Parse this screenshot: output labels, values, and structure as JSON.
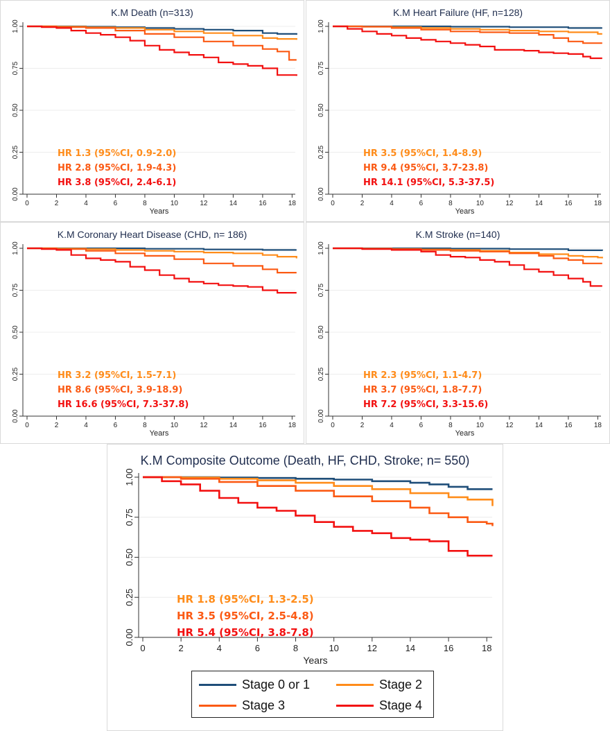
{
  "figure": {
    "colors": {
      "stage01": "#1f4e79",
      "stage2": "#ff8c1a",
      "stage3": "#fb5a14",
      "stage4": "#f21010",
      "title": "#1f2d4e"
    },
    "legend": [
      {
        "label": "Stage 0 or 1",
        "color": "#1f4e79"
      },
      {
        "label": "Stage 2",
        "color": "#ff8c1a"
      },
      {
        "label": "Stage 3",
        "color": "#fb5a14"
      },
      {
        "label": "Stage 4",
        "color": "#f21010"
      }
    ]
  },
  "chart_data": [
    {
      "type": "line",
      "title": "K.M Death (n=313)",
      "xlabel": "Years",
      "xlim": [
        0,
        18.5
      ],
      "ylim": [
        0,
        1
      ],
      "xticks": [
        "0",
        "2",
        "4",
        "6",
        "8",
        "10",
        "12",
        "14",
        "16",
        "18"
      ],
      "yticks": [
        "0.00",
        "0.25",
        "0.50",
        "0.75",
        "1.00"
      ],
      "series": [
        {
          "name": "Stage 0 or 1",
          "x": [
            0,
            2,
            4,
            6,
            8,
            10,
            12,
            14,
            16,
            17,
            18.3
          ],
          "y": [
            1.0,
            1.0,
            0.998,
            0.995,
            0.99,
            0.985,
            0.98,
            0.975,
            0.96,
            0.955,
            0.95
          ]
        },
        {
          "name": "Stage 2",
          "x": [
            0,
            2,
            4,
            6,
            8,
            10,
            12,
            14,
            16,
            17,
            18.3
          ],
          "y": [
            1.0,
            0.998,
            0.994,
            0.99,
            0.98,
            0.97,
            0.96,
            0.945,
            0.93,
            0.925,
            0.92
          ]
        },
        {
          "name": "Stage 3",
          "x": [
            0,
            2,
            4,
            6,
            8,
            10,
            12,
            14,
            16,
            17,
            17.8,
            18.3
          ],
          "y": [
            1.0,
            0.995,
            0.99,
            0.975,
            0.955,
            0.935,
            0.91,
            0.885,
            0.865,
            0.85,
            0.8,
            0.8
          ]
        },
        {
          "name": "Stage 4",
          "x": [
            0,
            1,
            2,
            3,
            4,
            5,
            6,
            7,
            8,
            9,
            10,
            11,
            12,
            13,
            14,
            15,
            16,
            17,
            18.3
          ],
          "y": [
            1.0,
            0.995,
            0.99,
            0.975,
            0.96,
            0.95,
            0.935,
            0.915,
            0.885,
            0.86,
            0.845,
            0.83,
            0.815,
            0.785,
            0.775,
            0.765,
            0.75,
            0.71,
            0.705
          ]
        }
      ],
      "annotations": [
        {
          "text": "HR 1.3 (95%CI, 0.9-2.0)",
          "series": "Stage 2"
        },
        {
          "text": "HR 2.8 (95%CI, 1.9-4.3)",
          "series": "Stage 3"
        },
        {
          "text": "HR 3.8 (95%CI, 2.4-6.1)",
          "series": "Stage 4"
        }
      ]
    },
    {
      "type": "line",
      "title": "K.M Heart Failure (HF, n=128)",
      "xlabel": "Years",
      "xlim": [
        0,
        18.5
      ],
      "ylim": [
        0,
        1
      ],
      "xticks": [
        "0",
        "2",
        "4",
        "6",
        "8",
        "10",
        "12",
        "14",
        "16",
        "18"
      ],
      "yticks": [
        "0.00",
        "0.25",
        "0.50",
        "0.75",
        "1.00"
      ],
      "series": [
        {
          "name": "Stage 0 or 1",
          "x": [
            0,
            4,
            8,
            12,
            16,
            18.3
          ],
          "y": [
            1.0,
            1.0,
            0.998,
            0.995,
            0.99,
            0.99
          ]
        },
        {
          "name": "Stage 2",
          "x": [
            0,
            2,
            4,
            6,
            8,
            10,
            12,
            14,
            16,
            18,
            18.3
          ],
          "y": [
            1.0,
            0.998,
            0.995,
            0.99,
            0.985,
            0.98,
            0.975,
            0.97,
            0.965,
            0.955,
            0.955
          ]
        },
        {
          "name": "Stage 3",
          "x": [
            0,
            2,
            4,
            6,
            8,
            10,
            12,
            14,
            15,
            16,
            17,
            18.3
          ],
          "y": [
            1.0,
            0.998,
            0.99,
            0.98,
            0.97,
            0.965,
            0.96,
            0.95,
            0.93,
            0.91,
            0.9,
            0.9
          ]
        },
        {
          "name": "Stage 4",
          "x": [
            0,
            1,
            2,
            3,
            4,
            5,
            6,
            7,
            8,
            9,
            10,
            11,
            12,
            13,
            14,
            15,
            16,
            17,
            17.5,
            18.3
          ],
          "y": [
            1.0,
            0.985,
            0.97,
            0.955,
            0.945,
            0.93,
            0.92,
            0.91,
            0.9,
            0.89,
            0.88,
            0.86,
            0.86,
            0.855,
            0.845,
            0.84,
            0.835,
            0.82,
            0.81,
            0.81
          ]
        }
      ],
      "annotations": [
        {
          "text": "HR 3.5 (95%CI, 1.4-8.9)",
          "series": "Stage 2"
        },
        {
          "text": "HR 9.4 (95%CI, 3.7-23.8)",
          "series": "Stage 3"
        },
        {
          "text": "HR 14.1 (95%CI, 5.3-37.5)",
          "series": "Stage 4"
        }
      ]
    },
    {
      "type": "line",
      "title": "K.M Coronary Heart Disease (CHD, n= 186)",
      "xlabel": "Years",
      "xlim": [
        0,
        18.5
      ],
      "ylim": [
        0,
        1
      ],
      "xticks": [
        "0",
        "2",
        "4",
        "6",
        "8",
        "10",
        "12",
        "14",
        "16",
        "18"
      ],
      "yticks": [
        "0.00",
        "0.25",
        "0.50",
        "0.75",
        "1.00"
      ],
      "series": [
        {
          "name": "Stage 0 or 1",
          "x": [
            0,
            4,
            8,
            12,
            16,
            18.3
          ],
          "y": [
            1.0,
            1.0,
            0.997,
            0.993,
            0.99,
            0.99
          ]
        },
        {
          "name": "Stage 2",
          "x": [
            0,
            2,
            4,
            6,
            8,
            10,
            12,
            14,
            16,
            17,
            18.3
          ],
          "y": [
            1.0,
            0.998,
            0.995,
            0.99,
            0.985,
            0.98,
            0.975,
            0.97,
            0.96,
            0.95,
            0.94
          ]
        },
        {
          "name": "Stage 3",
          "x": [
            0,
            2,
            4,
            6,
            8,
            10,
            12,
            14,
            16,
            17,
            18.3
          ],
          "y": [
            1.0,
            0.995,
            0.985,
            0.97,
            0.955,
            0.935,
            0.91,
            0.895,
            0.875,
            0.855,
            0.855
          ]
        },
        {
          "name": "Stage 4",
          "x": [
            0,
            1,
            2,
            3,
            4,
            5,
            6,
            7,
            8,
            9,
            10,
            11,
            12,
            13,
            14,
            15,
            16,
            17,
            18.3
          ],
          "y": [
            1.0,
            0.995,
            0.99,
            0.96,
            0.94,
            0.93,
            0.92,
            0.89,
            0.87,
            0.84,
            0.82,
            0.8,
            0.79,
            0.78,
            0.775,
            0.77,
            0.75,
            0.735,
            0.735
          ]
        }
      ],
      "annotations": [
        {
          "text": "HR 3.2 (95%CI, 1.5-7.1)",
          "series": "Stage 2"
        },
        {
          "text": "HR 8.6 (95%CI, 3.9-18.9)",
          "series": "Stage 3"
        },
        {
          "text": "HR 16.6 (95%CI, 7.3-37.8)",
          "series": "Stage 4"
        }
      ]
    },
    {
      "type": "line",
      "title": "K.M Stroke (n=140)",
      "xlabel": "Years",
      "xlim": [
        0,
        18.5
      ],
      "ylim": [
        0,
        1
      ],
      "xticks": [
        "0",
        "2",
        "4",
        "6",
        "8",
        "10",
        "12",
        "14",
        "16",
        "18"
      ],
      "yticks": [
        "0.00",
        "0.25",
        "0.50",
        "0.75",
        "1.00"
      ],
      "series": [
        {
          "name": "Stage 0 or 1",
          "x": [
            0,
            4,
            8,
            12,
            16,
            18.3
          ],
          "y": [
            1.0,
            1.0,
            0.998,
            0.995,
            0.988,
            0.985
          ]
        },
        {
          "name": "Stage 2",
          "x": [
            0,
            2,
            4,
            6,
            8,
            10,
            12,
            14,
            16,
            17,
            18,
            18.3
          ],
          "y": [
            1.0,
            0.998,
            0.996,
            0.993,
            0.99,
            0.985,
            0.975,
            0.965,
            0.955,
            0.95,
            0.945,
            0.94
          ]
        },
        {
          "name": "Stage 3",
          "x": [
            0,
            2,
            4,
            6,
            8,
            10,
            12,
            14,
            15,
            16,
            17,
            18.3
          ],
          "y": [
            1.0,
            0.998,
            0.995,
            0.99,
            0.985,
            0.98,
            0.97,
            0.955,
            0.94,
            0.93,
            0.91,
            0.91
          ]
        },
        {
          "name": "Stage 4",
          "x": [
            0,
            2,
            4,
            6,
            7,
            8,
            9,
            10,
            11,
            12,
            13,
            14,
            15,
            16,
            17,
            17.5,
            18.3
          ],
          "y": [
            1.0,
            0.995,
            0.99,
            0.98,
            0.96,
            0.95,
            0.945,
            0.93,
            0.92,
            0.9,
            0.875,
            0.86,
            0.84,
            0.82,
            0.8,
            0.775,
            0.775
          ]
        }
      ],
      "annotations": [
        {
          "text": "HR 2.3 (95%CI, 1.1-4.7)",
          "series": "Stage 2"
        },
        {
          "text": "HR 3.7 (95%CI, 1.8-7.7)",
          "series": "Stage 3"
        },
        {
          "text": "HR 7.2 (95%CI, 3.3-15.6)",
          "series": "Stage 4"
        }
      ]
    },
    {
      "type": "line",
      "title": "K.M Composite Outcome (Death, HF, CHD, Stroke;  n= 550)",
      "xlabel": "Years",
      "xlim": [
        0,
        18.5
      ],
      "ylim": [
        0,
        1
      ],
      "xticks": [
        "0",
        "2",
        "4",
        "6",
        "8",
        "10",
        "12",
        "14",
        "16",
        "18"
      ],
      "yticks": [
        "0.00",
        "0.25",
        "0.50",
        "0.75",
        "1.00"
      ],
      "series": [
        {
          "name": "Stage 0 or 1",
          "x": [
            0,
            2,
            4,
            6,
            8,
            10,
            12,
            14,
            15,
            16,
            17,
            18.3
          ],
          "y": [
            1.0,
            1.0,
            0.998,
            0.995,
            0.99,
            0.985,
            0.975,
            0.965,
            0.955,
            0.94,
            0.925,
            0.925
          ]
        },
        {
          "name": "Stage 2",
          "x": [
            0,
            2,
            4,
            6,
            8,
            10,
            12,
            14,
            16,
            17,
            18.3
          ],
          "y": [
            1.0,
            0.998,
            0.99,
            0.98,
            0.965,
            0.945,
            0.925,
            0.9,
            0.875,
            0.86,
            0.82
          ]
        },
        {
          "name": "Stage 3",
          "x": [
            0,
            2,
            4,
            6,
            8,
            10,
            12,
            14,
            15,
            16,
            17,
            18,
            18.3
          ],
          "y": [
            1.0,
            0.99,
            0.97,
            0.945,
            0.915,
            0.88,
            0.85,
            0.81,
            0.775,
            0.75,
            0.72,
            0.71,
            0.695
          ]
        },
        {
          "name": "Stage 4",
          "x": [
            0,
            1,
            2,
            3,
            4,
            5,
            6,
            7,
            8,
            9,
            10,
            11,
            12,
            13,
            14,
            15,
            16,
            17,
            18.3
          ],
          "y": [
            1.0,
            0.975,
            0.955,
            0.915,
            0.87,
            0.84,
            0.81,
            0.79,
            0.76,
            0.72,
            0.69,
            0.665,
            0.65,
            0.62,
            0.61,
            0.6,
            0.54,
            0.51,
            0.51
          ]
        }
      ],
      "annotations": [
        {
          "text": "HR 1.8 (95%CI, 1.3-2.5)",
          "series": "Stage 2"
        },
        {
          "text": "HR 3.5 (95%CI, 2.5-4.8)",
          "series": "Stage 3"
        },
        {
          "text": "HR 5.4 (95%CI, 3.8-7.8)",
          "series": "Stage 4"
        }
      ]
    }
  ]
}
